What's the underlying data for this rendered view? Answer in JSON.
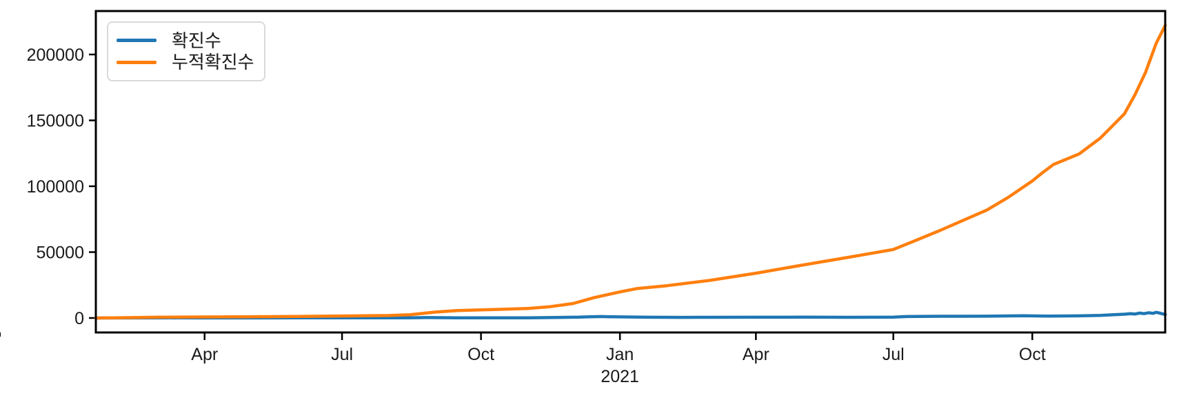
{
  "chart_data": {
    "type": "line",
    "title": "",
    "xlabel": "",
    "ylabel": "",
    "grid": false,
    "legend_position": "upper left",
    "x_axis": {
      "start": "2020-01-20",
      "end": "2021-12-28",
      "minor_ticks": "monthly",
      "major_ticks": [
        {
          "date": "2020-04-01",
          "label": "Apr"
        },
        {
          "date": "2020-07-01",
          "label": "Jul"
        },
        {
          "date": "2020-10-01",
          "label": "Oct"
        },
        {
          "date": "2021-01-01",
          "label": "Jan"
        },
        {
          "date": "2021-04-01",
          "label": "Apr"
        },
        {
          "date": "2021-07-01",
          "label": "Jul"
        },
        {
          "date": "2021-10-01",
          "label": "Oct"
        }
      ],
      "year_label": {
        "date": "2021-01-01",
        "label": "2021"
      }
    },
    "y_axis": {
      "min": -11000,
      "max": 233000,
      "ticks": [
        {
          "value": 0,
          "label": "0"
        },
        {
          "value": 50000,
          "label": "50000"
        },
        {
          "value": 100000,
          "label": "100000"
        },
        {
          "value": 150000,
          "label": "150000"
        },
        {
          "value": 200000,
          "label": "200000"
        }
      ]
    },
    "series": [
      {
        "name": "확진수",
        "color": "#1f77b4",
        "points": [
          [
            "2020-01-20",
            0
          ],
          [
            "2020-02-20",
            60
          ],
          [
            "2020-03-10",
            130
          ],
          [
            "2020-04-01",
            60
          ],
          [
            "2020-05-01",
            40
          ],
          [
            "2020-06-01",
            120
          ],
          [
            "2020-07-01",
            100
          ],
          [
            "2020-08-14",
            180
          ],
          [
            "2020-08-26",
            330
          ],
          [
            "2020-09-15",
            180
          ],
          [
            "2020-10-01",
            120
          ],
          [
            "2020-11-01",
            160
          ],
          [
            "2020-11-20",
            350
          ],
          [
            "2020-12-05",
            620
          ],
          [
            "2020-12-12",
            950
          ],
          [
            "2020-12-20",
            1100
          ],
          [
            "2020-12-25",
            950
          ],
          [
            "2021-01-05",
            800
          ],
          [
            "2021-01-20",
            550
          ],
          [
            "2021-02-10",
            450
          ],
          [
            "2021-03-01",
            500
          ],
          [
            "2021-04-01",
            600
          ],
          [
            "2021-05-01",
            620
          ],
          [
            "2021-06-01",
            500
          ],
          [
            "2021-07-01",
            700
          ],
          [
            "2021-07-10",
            1100
          ],
          [
            "2021-08-01",
            1300
          ],
          [
            "2021-09-01",
            1350
          ],
          [
            "2021-09-25",
            1700
          ],
          [
            "2021-10-10",
            1400
          ],
          [
            "2021-11-01",
            1600
          ],
          [
            "2021-11-15",
            2000
          ],
          [
            "2021-11-24",
            2500
          ],
          [
            "2021-12-01",
            2900
          ],
          [
            "2021-12-05",
            3300
          ],
          [
            "2021-12-08",
            3000
          ],
          [
            "2021-12-11",
            3700
          ],
          [
            "2021-12-14",
            3300
          ],
          [
            "2021-12-17",
            4000
          ],
          [
            "2021-12-20",
            3500
          ],
          [
            "2021-12-22",
            4300
          ],
          [
            "2021-12-24",
            3800
          ],
          [
            "2021-12-26",
            3200
          ],
          [
            "2021-12-28",
            2700
          ]
        ]
      },
      {
        "name": "누적확진수",
        "color": "#ff7f0e",
        "points": [
          [
            "2020-01-20",
            0
          ],
          [
            "2020-02-01",
            100
          ],
          [
            "2020-03-01",
            600
          ],
          [
            "2020-04-01",
            800
          ],
          [
            "2020-05-01",
            950
          ],
          [
            "2020-06-01",
            1200
          ],
          [
            "2020-07-01",
            1500
          ],
          [
            "2020-08-01",
            1900
          ],
          [
            "2020-08-15",
            2500
          ],
          [
            "2020-09-01",
            4500
          ],
          [
            "2020-09-15",
            5600
          ],
          [
            "2020-10-01",
            6200
          ],
          [
            "2020-10-15",
            6600
          ],
          [
            "2020-11-01",
            7200
          ],
          [
            "2020-11-15",
            8500
          ],
          [
            "2020-12-01",
            11000
          ],
          [
            "2020-12-15",
            15500
          ],
          [
            "2021-01-01",
            19800
          ],
          [
            "2021-01-12",
            22300
          ],
          [
            "2021-02-01",
            24500
          ],
          [
            "2021-03-01",
            28500
          ],
          [
            "2021-04-01",
            34000
          ],
          [
            "2021-05-01",
            40000
          ],
          [
            "2021-06-01",
            46000
          ],
          [
            "2021-07-01",
            52000
          ],
          [
            "2021-07-15",
            58500
          ],
          [
            "2021-08-01",
            66500
          ],
          [
            "2021-08-15",
            73500
          ],
          [
            "2021-09-01",
            82000
          ],
          [
            "2021-09-15",
            91500
          ],
          [
            "2021-10-01",
            104000
          ],
          [
            "2021-10-08",
            110500
          ],
          [
            "2021-10-15",
            116500
          ],
          [
            "2021-11-01",
            124500
          ],
          [
            "2021-11-15",
            136500
          ],
          [
            "2021-12-01",
            155000
          ],
          [
            "2021-12-08",
            169500
          ],
          [
            "2021-12-15",
            186500
          ],
          [
            "2021-12-22",
            208500
          ],
          [
            "2021-12-28",
            222000
          ]
        ]
      }
    ]
  }
}
